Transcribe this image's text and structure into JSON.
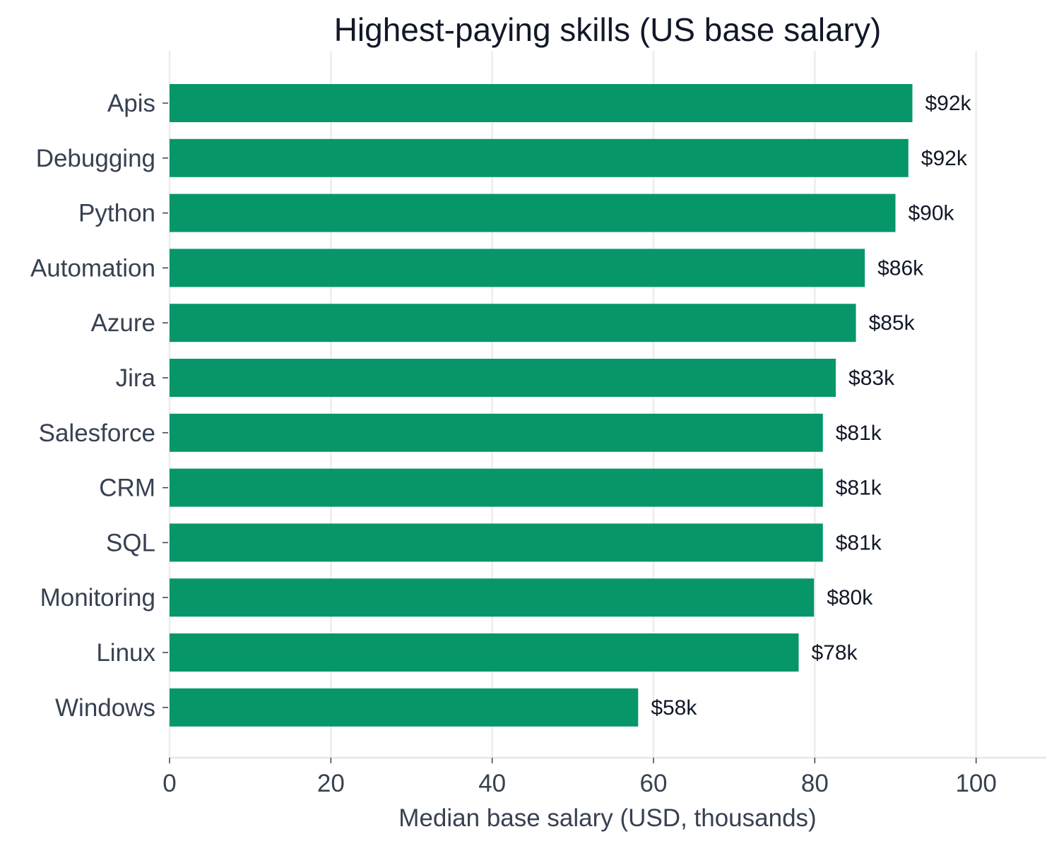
{
  "chart_data": {
    "type": "bar",
    "orientation": "horizontal",
    "title": "Highest-paying skills (US base salary)",
    "xlabel": "Median base salary (USD, thousands)",
    "ylabel": "",
    "categories": [
      "Apis",
      "Debugging",
      "Python",
      "Automation",
      "Azure",
      "Jira",
      "Salesforce",
      "CRM",
      "SQL",
      "Monitoring",
      "Linux",
      "Windows"
    ],
    "values": [
      92.1,
      91.6,
      90.0,
      86.2,
      85.1,
      82.6,
      81.0,
      81.0,
      81.0,
      79.9,
      78.0,
      58.1
    ],
    "value_labels": [
      "$92k",
      "$92k",
      "$90k",
      "$86k",
      "$85k",
      "$83k",
      "$81k",
      "$81k",
      "$81k",
      "$80k",
      "$78k",
      "$58k"
    ],
    "xticks": [
      0,
      20,
      40,
      60,
      80,
      100
    ],
    "xtick_labels": [
      "0",
      "20",
      "40",
      "60",
      "80",
      "100"
    ],
    "xlim": [
      0,
      108.7
    ],
    "grid": "vertical",
    "legend": "none",
    "colors": {
      "bar": "#07966a",
      "grid": "#ececec",
      "axis": "#e5e7eb",
      "title": "#111827",
      "text": "#374151",
      "value_label": "#111827"
    }
  }
}
